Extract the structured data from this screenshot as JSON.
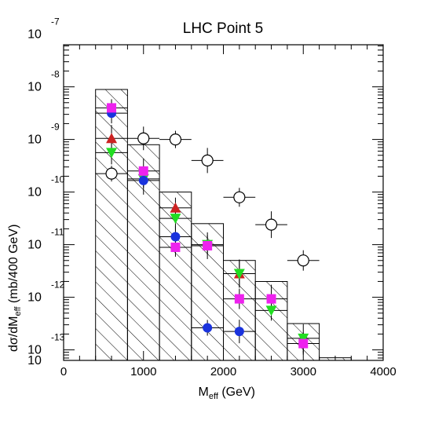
{
  "chart_data": {
    "type": "scatter",
    "title": "LHC Point 5",
    "xlabel": {
      "main": "M",
      "sub": "eff",
      "unit": " (GeV)"
    },
    "ylabel": {
      "prefix": "dσ/dM",
      "sub": "eff",
      "suffix": " (mb/400 GeV)"
    },
    "xlim": [
      0,
      4000
    ],
    "ylim_log10": [
      -13.2,
      -7.2
    ],
    "y_scale": "log",
    "grid": false,
    "x_ticks": [
      {
        "value": 0,
        "label": "0"
      },
      {
        "value": 1000,
        "label": "1000"
      },
      {
        "value": 2000,
        "label": "2000"
      },
      {
        "value": 3000,
        "label": "3000"
      },
      {
        "value": 4000,
        "label": "4000"
      }
    ],
    "y_ticks": [
      {
        "exp": -7,
        "base": "10",
        "label": "-7"
      },
      {
        "exp": -8,
        "base": "10",
        "label": "-8"
      },
      {
        "exp": -9,
        "base": "10",
        "label": "-9"
      },
      {
        "exp": -10,
        "base": "10",
        "label": "-10"
      },
      {
        "exp": -11,
        "base": "10",
        "label": "-11"
      },
      {
        "exp": -12,
        "base": "10",
        "label": "-12"
      },
      {
        "exp": -13,
        "base": "10",
        "label": "-13"
      },
      {
        "exp": -13.2,
        "base": "10",
        "label": ""
      }
    ],
    "histogram": {
      "style": "hatched",
      "bins": [
        {
          "x0": 400,
          "x1": 800,
          "log10y": -8.05
        },
        {
          "x0": 800,
          "x1": 1200,
          "log10y": -9.1
        },
        {
          "x0": 1200,
          "x1": 1600,
          "log10y": -10.0
        },
        {
          "x0": 1600,
          "x1": 2000,
          "log10y": -10.6
        },
        {
          "x0": 2000,
          "x1": 2400,
          "log10y": -11.3
        },
        {
          "x0": 2400,
          "x1": 2800,
          "log10y": -11.7
        },
        {
          "x0": 2800,
          "x1": 3200,
          "log10y": -12.5
        },
        {
          "x0": 3200,
          "x1": 3600,
          "log10y": -13.15
        }
      ]
    },
    "series": [
      {
        "marker": "open-circle",
        "color": "#ffffff",
        "points": [
          {
            "x": 600,
            "log10y": -9.65
          },
          {
            "x": 1000,
            "log10y": -8.98
          },
          {
            "x": 1400,
            "log10y": -9.0
          },
          {
            "x": 1800,
            "log10y": -9.4
          },
          {
            "x": 2200,
            "log10y": -10.1
          },
          {
            "x": 2600,
            "log10y": -10.62
          },
          {
            "x": 3000,
            "log10y": -11.3
          }
        ]
      },
      {
        "marker": "triangle-up",
        "color": "#cc2222",
        "points": [
          {
            "x": 600,
            "log10y": -8.98
          },
          {
            "x": 1400,
            "log10y": -10.3
          },
          {
            "x": 2200,
            "log10y": -11.55
          }
        ]
      },
      {
        "marker": "triangle-down",
        "color": "#22dd22",
        "points": [
          {
            "x": 600,
            "log10y": -9.25
          },
          {
            "x": 1000,
            "log10y": -9.75
          },
          {
            "x": 1400,
            "log10y": -10.5
          },
          {
            "x": 1800,
            "log10y": -11.0
          },
          {
            "x": 2200,
            "log10y": -11.55
          },
          {
            "x": 2600,
            "log10y": -12.25
          },
          {
            "x": 3000,
            "log10y": -12.78
          }
        ]
      },
      {
        "marker": "filled-circle",
        "color": "#1a33dd",
        "points": [
          {
            "x": 600,
            "log10y": -8.5
          },
          {
            "x": 1000,
            "log10y": -9.78
          },
          {
            "x": 1400,
            "log10y": -10.85
          },
          {
            "x": 1800,
            "log10y": -12.58
          },
          {
            "x": 2200,
            "log10y": -12.65
          }
        ]
      },
      {
        "marker": "square",
        "color": "#ee22ee",
        "points": [
          {
            "x": 600,
            "log10y": -8.4
          },
          {
            "x": 1000,
            "log10y": -9.6
          },
          {
            "x": 1400,
            "log10y": -11.05
          },
          {
            "x": 1800,
            "log10y": -11.02
          },
          {
            "x": 2200,
            "log10y": -12.03
          },
          {
            "x": 2600,
            "log10y": -12.03
          },
          {
            "x": 3000,
            "log10y": -12.88
          }
        ]
      }
    ]
  }
}
